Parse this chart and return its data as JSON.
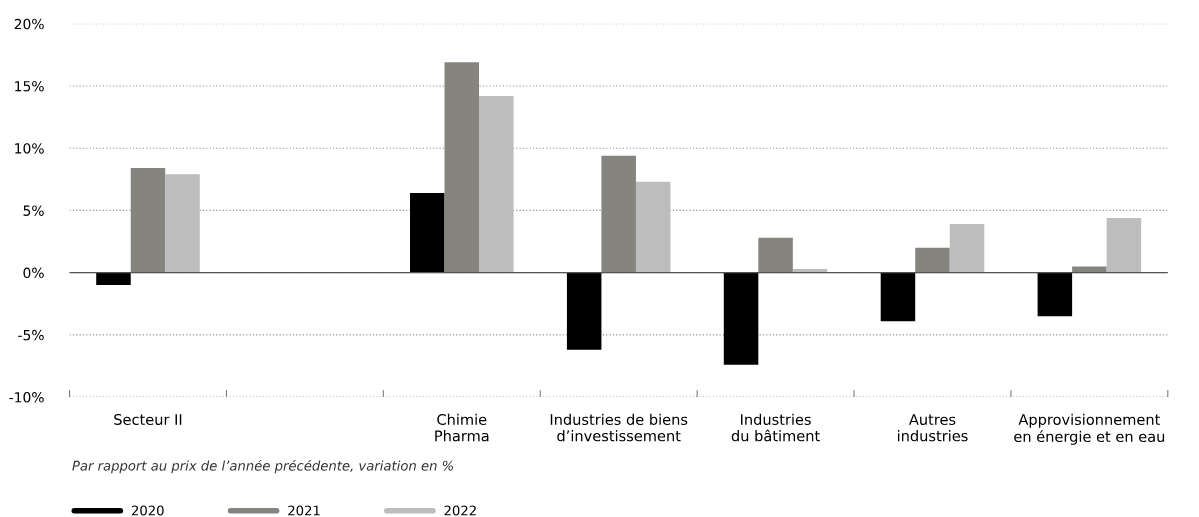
{
  "chart_data": {
    "type": "bar",
    "categories": [
      "Secteur II",
      null,
      "Chimie\nPharma",
      "Industries de biens\nd’investissement",
      "Industries\ndu bâtiment",
      "Autres\nindustries",
      "Approvisionnement\nen énergie et en eau"
    ],
    "series": [
      {
        "name": "2020",
        "color": "#000000",
        "values": [
          -1.0,
          null,
          6.4,
          -6.2,
          -7.4,
          -3.9,
          -3.5
        ]
      },
      {
        "name": "2021",
        "color": "#85847e",
        "values": [
          8.4,
          null,
          16.9,
          9.4,
          2.8,
          2.0,
          0.5
        ]
      },
      {
        "name": "2022",
        "color": "#bdbdbd",
        "values": [
          7.9,
          null,
          14.2,
          7.3,
          0.3,
          3.9,
          4.4
        ]
      }
    ],
    "ylim": [
      -10,
      20
    ],
    "yticks": [
      {
        "value": -10,
        "label": "-10%"
      },
      {
        "value": -5,
        "label": "-5%"
      },
      {
        "value": 0,
        "label": "0%"
      },
      {
        "value": 5,
        "label": "5%"
      },
      {
        "value": 10,
        "label": "10%"
      },
      {
        "value": 15,
        "label": "15%"
      },
      {
        "value": 20,
        "label": "20%"
      }
    ],
    "grid": "y",
    "legend": "bottom left",
    "annotations": [
      "Par rapport au prix de l’année précédente, variation en %"
    ]
  }
}
